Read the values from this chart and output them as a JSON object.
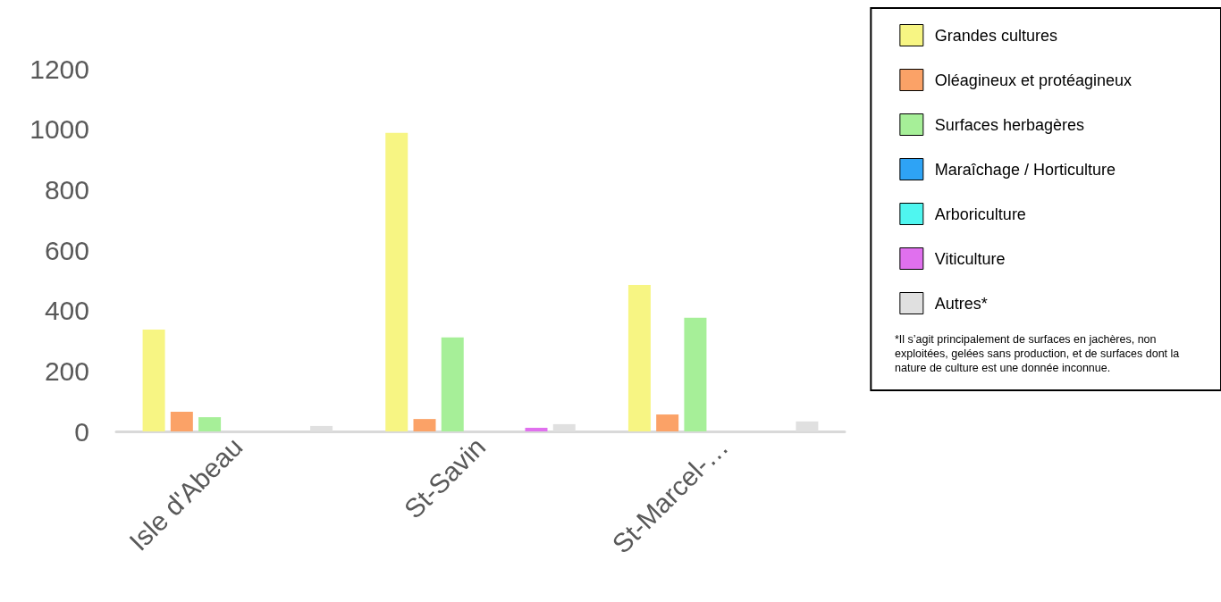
{
  "chart_data": {
    "type": "bar",
    "categories": [
      "Isle d'Abeau",
      "St-Savin",
      "St-Marcel-…"
    ],
    "series": [
      {
        "name": "Grandes cultures",
        "color": "#f7f583",
        "values": [
          337,
          988,
          485
        ]
      },
      {
        "name": "Oléagineux et protéagineux",
        "color": "#fba267",
        "values": [
          65,
          41,
          56
        ]
      },
      {
        "name": "Surfaces herbagères",
        "color": "#a6ef98",
        "values": [
          47,
          311,
          376
        ]
      },
      {
        "name": "Maraîchage / Horticulture",
        "color": "#2ea3f5",
        "values": [
          null,
          null,
          null
        ]
      },
      {
        "name": "Arboriculture",
        "color": "#4ff6f0",
        "values": [
          null,
          null,
          null
        ]
      },
      {
        "name": "Viticulture",
        "color": "#e070ee",
        "values": [
          null,
          12,
          null
        ]
      },
      {
        "name": "Autres*",
        "color": "#e0e0e0",
        "values": [
          18,
          24,
          33
        ]
      }
    ],
    "ylim": [
      0,
      1200
    ],
    "yticks": [
      0,
      200,
      400,
      600,
      800,
      1000,
      1200
    ],
    "grid": false,
    "legend": "right",
    "annotations": [
      "*Il s’agit principalement de surfaces en jachères, non exploitées, gelées sans production, et de surfaces dont la nature de culture est une donnée inconnue."
    ]
  }
}
